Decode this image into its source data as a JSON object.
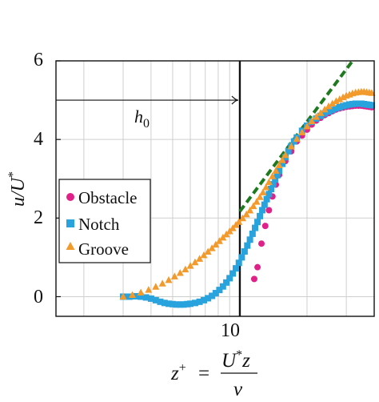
{
  "chart_data": {
    "type": "scatter",
    "xscale": "log",
    "xlim": [
      1.5,
      40
    ],
    "ylim": [
      -0.5,
      6
    ],
    "grid": true,
    "xlabel": {
      "lhs": "z",
      "lhs_sup": "+",
      "equals": "=",
      "num": "U",
      "num_sup": "*",
      "num_tail": "z",
      "den": "ν"
    },
    "ylabel": {
      "main": "u/U",
      "sup": "*"
    },
    "yticks": [
      0,
      2,
      4,
      6
    ],
    "xticks": [
      10
    ],
    "legend_position": "center-left",
    "annotation": {
      "text": "h",
      "sub": "0",
      "arrow_y": 5,
      "arrow_from_x": 1.5,
      "arrow_to_x": 10
    },
    "reference_vline_x": 10,
    "log_law": {
      "style": "dashed",
      "color": "#1f7a1f",
      "x": [
        10,
        32
      ],
      "y": [
        2.17,
        6.0
      ]
    },
    "series": [
      {
        "name": "Obstacle",
        "marker": "circle",
        "color": "#e0218a",
        "x": [
          11.6,
          12.0,
          12.5,
          13.0,
          13.5,
          14.0,
          14.5,
          15.0,
          16,
          17,
          18,
          19,
          20,
          21,
          22,
          23,
          24,
          25,
          26,
          27,
          28,
          29,
          30,
          31,
          32,
          33,
          34,
          35,
          36,
          37,
          38,
          39
        ],
        "y": [
          0.45,
          0.75,
          1.35,
          1.8,
          2.2,
          2.55,
          2.85,
          3.1,
          3.45,
          3.7,
          3.95,
          4.1,
          4.25,
          4.38,
          4.48,
          4.55,
          4.62,
          4.67,
          4.72,
          4.76,
          4.79,
          4.81,
          4.83,
          4.84,
          4.85,
          4.86,
          4.86,
          4.86,
          4.85,
          4.84,
          4.83,
          4.82
        ]
      },
      {
        "name": "Notch",
        "marker": "square",
        "color": "#29a3dd",
        "x": [
          3.0,
          3.2,
          3.4,
          3.6,
          3.8,
          4.0,
          4.2,
          4.4,
          4.6,
          4.8,
          5.0,
          5.2,
          5.4,
          5.6,
          5.8,
          6.0,
          6.3,
          6.6,
          6.9,
          7.2,
          7.5,
          7.8,
          8.1,
          8.4,
          8.7,
          9.0,
          9.3,
          9.6,
          9.9,
          10.2,
          10.5,
          10.8,
          11.1,
          11.4,
          11.7,
          12.0,
          12.3,
          12.6,
          12.9,
          13.2,
          13.5,
          13.8,
          14.1,
          14.4,
          14.7,
          15.0,
          15.5,
          16,
          16.5,
          17,
          17.5,
          18,
          19,
          20,
          21,
          22,
          23,
          24,
          25,
          26,
          27,
          28,
          29,
          30,
          31,
          32,
          33,
          34,
          35,
          36,
          37,
          38,
          39
        ],
        "y": [
          0.0,
          0.0,
          0.01,
          0.0,
          -0.02,
          -0.05,
          -0.09,
          -0.13,
          -0.16,
          -0.18,
          -0.19,
          -0.2,
          -0.2,
          -0.2,
          -0.19,
          -0.18,
          -0.16,
          -0.13,
          -0.09,
          -0.04,
          0.02,
          0.09,
          0.17,
          0.26,
          0.36,
          0.47,
          0.59,
          0.72,
          0.86,
          1.0,
          1.15,
          1.3,
          1.45,
          1.6,
          1.75,
          1.9,
          2.05,
          2.2,
          2.34,
          2.48,
          2.61,
          2.74,
          2.86,
          2.98,
          3.09,
          3.2,
          3.38,
          3.55,
          3.7,
          3.83,
          3.95,
          4.05,
          4.22,
          4.35,
          4.45,
          4.53,
          4.6,
          4.66,
          4.71,
          4.75,
          4.79,
          4.82,
          4.85,
          4.87,
          4.89,
          4.9,
          4.91,
          4.91,
          4.91,
          4.9,
          4.89,
          4.88,
          4.87
        ]
      },
      {
        "name": "Groove",
        "marker": "triangle",
        "color": "#f39a2c",
        "x": [
          3.0,
          3.3,
          3.6,
          3.9,
          4.2,
          4.5,
          4.8,
          5.1,
          5.4,
          5.7,
          6.0,
          6.3,
          6.6,
          6.9,
          7.2,
          7.5,
          7.8,
          8.1,
          8.4,
          8.7,
          9.0,
          9.3,
          9.6,
          9.9,
          10.3,
          10.7,
          11.1,
          11.5,
          11.9,
          12.3,
          12.7,
          13.1,
          13.5,
          14,
          14.5,
          15,
          15.5,
          16,
          17,
          18,
          19,
          20,
          21,
          22,
          23,
          24,
          25,
          26,
          27,
          28,
          29,
          30,
          31,
          32,
          33,
          34,
          35,
          36,
          37,
          38,
          39
        ],
        "y": [
          0.0,
          0.04,
          0.1,
          0.17,
          0.25,
          0.33,
          0.42,
          0.51,
          0.6,
          0.69,
          0.78,
          0.87,
          0.96,
          1.05,
          1.14,
          1.23,
          1.32,
          1.41,
          1.5,
          1.58,
          1.66,
          1.74,
          1.82,
          1.9,
          1.99,
          2.09,
          2.19,
          2.3,
          2.41,
          2.53,
          2.65,
          2.78,
          2.91,
          3.06,
          3.2,
          3.34,
          3.47,
          3.6,
          3.82,
          4.01,
          4.18,
          4.33,
          4.46,
          4.57,
          4.67,
          4.76,
          4.84,
          4.91,
          4.97,
          5.02,
          5.07,
          5.11,
          5.14,
          5.17,
          5.19,
          5.2,
          5.21,
          5.21,
          5.2,
          5.19,
          5.18
        ]
      }
    ]
  },
  "labels": {
    "ytick_0": "0",
    "ytick_2": "2",
    "ytick_4": "4",
    "ytick_6": "6",
    "xtick_10": "10",
    "legend_obstacle": "Obstacle",
    "legend_notch": "Notch",
    "legend_groove": "Groove",
    "colors": {
      "obstacle": "#e0218a",
      "notch": "#29a3dd",
      "groove": "#f39a2c",
      "loglaw": "#1f7a1f"
    }
  }
}
